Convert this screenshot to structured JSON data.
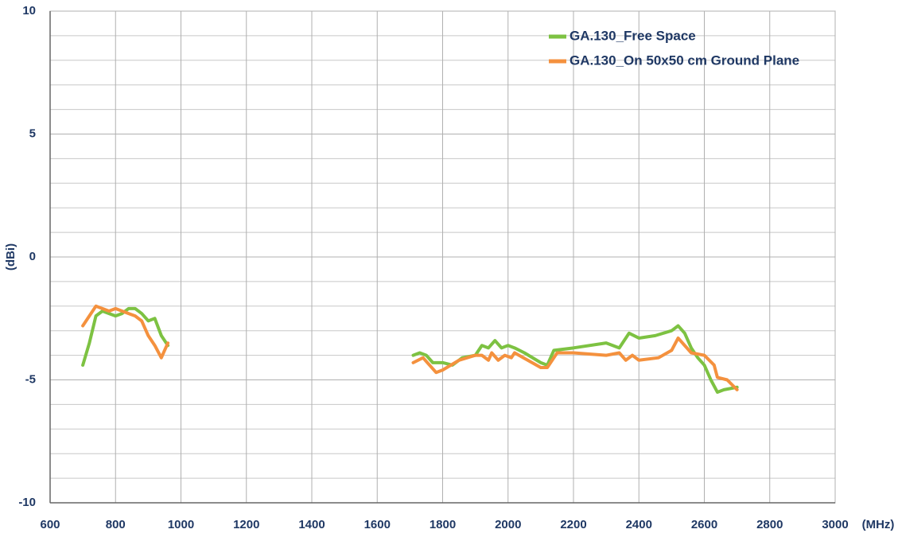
{
  "chart_data": {
    "type": "line",
    "xlabel": "(MHz)",
    "ylabel": "(dBi)",
    "xlim": [
      600,
      3000
    ],
    "xticks": [
      600,
      800,
      1000,
      1200,
      1400,
      1600,
      1800,
      2000,
      2200,
      2400,
      2600,
      2800,
      3000
    ],
    "ylim": [
      -10,
      10
    ],
    "yticks": [
      -10,
      -5,
      0,
      5,
      10
    ],
    "yminor_ticks": [
      -9,
      -8,
      -7,
      -6,
      -4,
      -3,
      -2,
      -1,
      1,
      2,
      3,
      4,
      6,
      7,
      8,
      9
    ],
    "grid": true,
    "legend": "upper right",
    "series": [
      {
        "name": "GA.130_Free Space",
        "color": "#7dc242",
        "x": [
          700,
          720,
          740,
          760,
          780,
          800,
          820,
          840,
          860,
          880,
          900,
          920,
          940,
          960,
          1300,
          1710,
          1730,
          1750,
          1770,
          1800,
          1830,
          1860,
          1900,
          1920,
          1940,
          1960,
          1980,
          2000,
          2020,
          2050,
          2100,
          2120,
          2140,
          2200,
          2300,
          2340,
          2370,
          2400,
          2450,
          2500,
          2520,
          2540,
          2560,
          2580,
          2600,
          2620,
          2640,
          2660,
          2700
        ],
        "values": [
          -4.4,
          -3.5,
          -2.4,
          -2.2,
          -2.3,
          -2.4,
          -2.3,
          -2.1,
          -2.1,
          -2.3,
          -2.6,
          -2.5,
          -3.2,
          -3.6,
          null,
          -4.0,
          -3.9,
          -4.0,
          -4.3,
          -4.3,
          -4.4,
          -4.1,
          -4.0,
          -3.6,
          -3.7,
          -3.4,
          -3.7,
          -3.6,
          -3.7,
          -3.9,
          -4.3,
          -4.4,
          -3.8,
          -3.7,
          -3.5,
          -3.7,
          -3.1,
          -3.3,
          -3.2,
          -3.0,
          -2.8,
          -3.1,
          -3.7,
          -4.1,
          -4.4,
          -5.0,
          -5.5,
          -5.4,
          -5.3
        ]
      },
      {
        "name": "GA.130_On 50x50 cm Ground Plane",
        "color": "#f4913e",
        "x": [
          700,
          720,
          740,
          760,
          780,
          800,
          820,
          840,
          860,
          880,
          900,
          920,
          940,
          960,
          1300,
          1710,
          1740,
          1760,
          1780,
          1800,
          1850,
          1900,
          1920,
          1940,
          1950,
          1970,
          1990,
          2010,
          2020,
          2060,
          2100,
          2120,
          2150,
          2200,
          2300,
          2340,
          2360,
          2380,
          2400,
          2460,
          2500,
          2520,
          2540,
          2560,
          2600,
          2630,
          2640,
          2670,
          2700
        ],
        "values": [
          -2.8,
          -2.4,
          -2.0,
          -2.1,
          -2.2,
          -2.1,
          -2.2,
          -2.3,
          -2.4,
          -2.6,
          -3.2,
          -3.6,
          -4.1,
          -3.5,
          null,
          -4.3,
          -4.1,
          -4.4,
          -4.7,
          -4.6,
          -4.2,
          -4.0,
          -4.0,
          -4.2,
          -3.9,
          -4.2,
          -4.0,
          -4.1,
          -3.9,
          -4.2,
          -4.5,
          -4.5,
          -3.9,
          -3.9,
          -4.0,
          -3.9,
          -4.2,
          -4.0,
          -4.2,
          -4.1,
          -3.8,
          -3.3,
          -3.6,
          -3.9,
          -4.0,
          -4.4,
          -4.9,
          -5.0,
          -5.4
        ]
      }
    ]
  }
}
